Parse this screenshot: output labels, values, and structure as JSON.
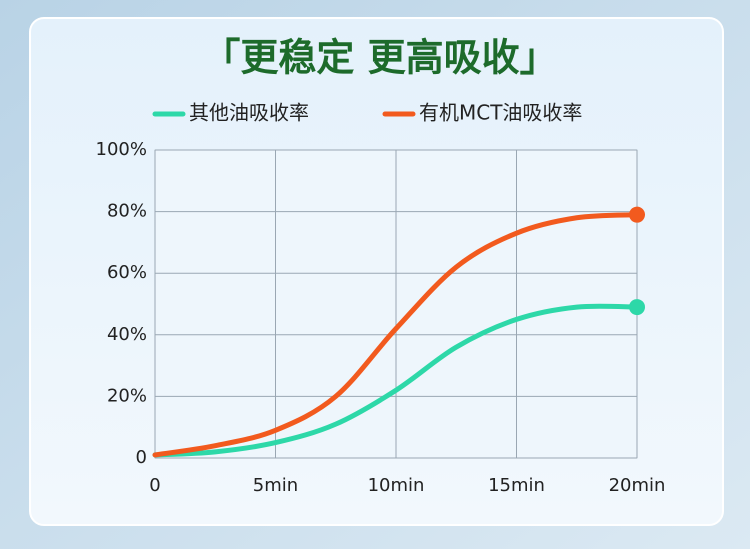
{
  "chart_data": {
    "type": "line",
    "title": "「更稳定 更高吸收」",
    "x": [
      0,
      2.5,
      5,
      7.5,
      10,
      12.5,
      15,
      17.5,
      20
    ],
    "series": [
      {
        "name": "其他油吸收率",
        "color": "#2dd8a8",
        "values": [
          1,
          2,
          5,
          11,
          22,
          36,
          45,
          49,
          49
        ]
      },
      {
        "name": "有机MCT油吸收率",
        "color": "#f25a1e",
        "values": [
          1,
          4,
          9,
          20,
          42,
          62,
          73,
          78,
          79
        ]
      }
    ],
    "xlim": [
      0,
      20
    ],
    "xticks": [
      0,
      {
        "value": 5,
        "label": "5min"
      },
      {
        "value": 10,
        "label": "10min"
      },
      {
        "value": 15,
        "label": "15min"
      },
      {
        "value": 20,
        "label": "20min"
      }
    ],
    "ylim": [
      0,
      100
    ],
    "yticks": [
      0,
      {
        "value": 20,
        "label": "20%"
      },
      {
        "value": 40,
        "label": "40%"
      },
      {
        "value": 60,
        "label": "60%"
      },
      {
        "value": 80,
        "label": "80%"
      },
      {
        "value": 100,
        "label": "100%"
      }
    ],
    "grid": true
  }
}
